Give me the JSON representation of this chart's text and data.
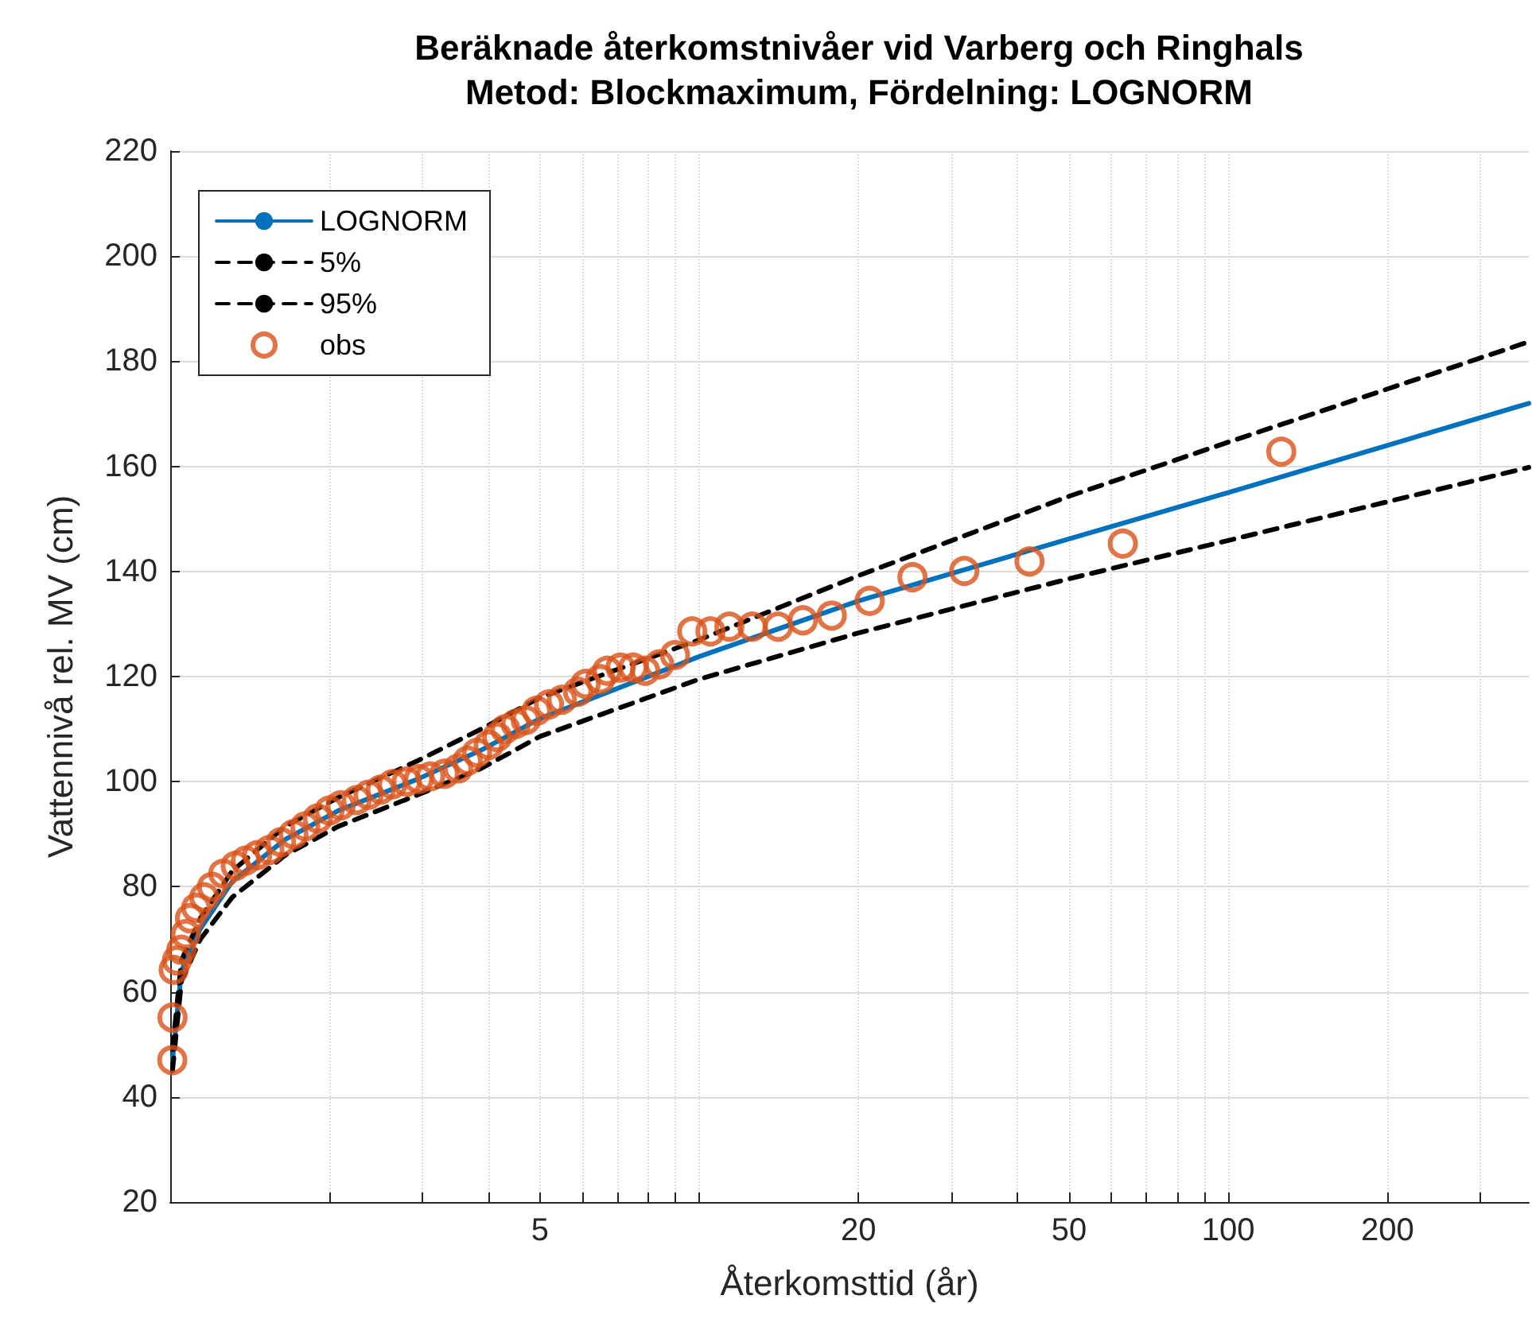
{
  "chart_data": {
    "type": "line",
    "title": "Beräknade återkomstnivåer vid Varberg och Ringhals",
    "subtitle": "Metod: Blockmaximum, Fördelning: LOGNORM",
    "xlabel": "Återkomsttid (år)",
    "ylabel": "Vattennivå rel. MV (cm)",
    "log": "x",
    "xlim": [
      1,
      370
    ],
    "ylim": [
      20,
      220
    ],
    "xticks": [
      {
        "value": 2,
        "label": null
      },
      {
        "value": 3,
        "label": null
      },
      {
        "value": 4,
        "label": null
      },
      5,
      {
        "value": 6,
        "label": null
      },
      {
        "value": 7,
        "label": null
      },
      {
        "value": 8,
        "label": null
      },
      {
        "value": 9,
        "label": null
      },
      {
        "value": 10,
        "label": null
      },
      20,
      {
        "value": 30,
        "label": null
      },
      {
        "value": 40,
        "label": null
      },
      50,
      {
        "value": 60,
        "label": null
      },
      {
        "value": 70,
        "label": null
      },
      {
        "value": 80,
        "label": null
      },
      {
        "value": 90,
        "label": null
      },
      100,
      200,
      {
        "value": 300,
        "label": null
      }
    ],
    "yticks": [
      20,
      40,
      60,
      80,
      100,
      120,
      140,
      160,
      180,
      200,
      220
    ],
    "grid": true,
    "legend": "top left",
    "series": [
      {
        "name": "LOGNORM",
        "type": "line",
        "color": "#0072bd",
        "line_style": "solid",
        "marker": "none",
        "x": [
          1.01,
          1.05,
          1.14,
          1.31,
          1.65,
          2.08,
          2.94,
          3.87,
          5,
          10,
          20,
          50,
          100,
          370
        ],
        "values": [
          47,
          64,
          72,
          81,
          89,
          94.5,
          100.5,
          106,
          112,
          123.8,
          134.4,
          146.2,
          155,
          172
        ]
      },
      {
        "name": "5%",
        "type": "line",
        "color": "#000000",
        "line_style": "dashed",
        "marker": "none",
        "x": [
          1.01,
          1.05,
          1.14,
          1.31,
          1.65,
          2.08,
          2.94,
          3.87,
          5,
          10,
          20,
          50,
          100,
          370
        ],
        "values": [
          49,
          66,
          74,
          83,
          91.5,
          97,
          104,
          110,
          116,
          127,
          139.2,
          154.3,
          164.6,
          183.7
        ]
      },
      {
        "name": "95%",
        "type": "line",
        "color": "#000000",
        "line_style": "dashed",
        "marker": "none",
        "x": [
          1.01,
          1.05,
          1.14,
          1.31,
          1.65,
          2.08,
          2.94,
          3.87,
          5,
          10,
          20,
          50,
          100,
          370
        ],
        "values": [
          45,
          62,
          70,
          78,
          86,
          91.5,
          97.5,
          102.5,
          108.6,
          119.5,
          128.3,
          138.6,
          145.9,
          159.8
        ]
      },
      {
        "name": "obs",
        "type": "scatter",
        "color": "#d95319",
        "marker": "circle",
        "x": [
          1.009,
          1.01,
          1.015,
          1.03,
          1.05,
          1.07,
          1.09,
          1.12,
          1.16,
          1.2,
          1.26,
          1.33,
          1.39,
          1.46,
          1.54,
          1.62,
          1.71,
          1.8,
          1.9,
          2.0,
          2.1,
          2.25,
          2.37,
          2.5,
          2.63,
          2.8,
          2.95,
          3.1,
          3.3,
          3.5,
          3.65,
          3.8,
          4.0,
          4.15,
          4.3,
          4.5,
          4.7,
          4.93,
          5.2,
          5.5,
          5.9,
          6.1,
          6.5,
          6.7,
          7.1,
          7.5,
          7.9,
          8.4,
          9.0,
          9.7,
          10.5,
          11.4,
          12.6,
          14.1,
          15.7,
          17.8,
          21.0,
          25.3,
          31.7,
          42.1,
          63.2,
          126
        ],
        "values": [
          47,
          55.1,
          64.2,
          66,
          68,
          71,
          74,
          76,
          78,
          80,
          82.5,
          84,
          85,
          86,
          87,
          88.5,
          90,
          91.5,
          93,
          94.5,
          95.5,
          96.5,
          97.5,
          98.5,
          99.5,
          100,
          100.5,
          101,
          101.5,
          102.5,
          104,
          105.5,
          107,
          108.5,
          110,
          111,
          111.7,
          113.5,
          114.7,
          115.6,
          117.1,
          118.6,
          119.5,
          121.1,
          121.7,
          121.7,
          121.1,
          122.3,
          124.1,
          128.6,
          128.6,
          129.5,
          129.5,
          129.5,
          130.7,
          131.6,
          134.4,
          138.9,
          140.1,
          141.9,
          145.3,
          162.8
        ]
      }
    ]
  }
}
